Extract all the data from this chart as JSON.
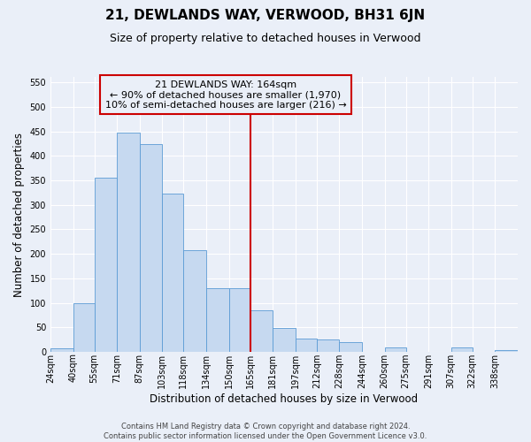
{
  "title": "21, DEWLANDS WAY, VERWOOD, BH31 6JN",
  "subtitle": "Size of property relative to detached houses in Verwood",
  "xlabel": "Distribution of detached houses by size in Verwood",
  "ylabel": "Number of detached properties",
  "bin_labels": [
    "24sqm",
    "40sqm",
    "55sqm",
    "71sqm",
    "87sqm",
    "103sqm",
    "118sqm",
    "134sqm",
    "150sqm",
    "165sqm",
    "181sqm",
    "197sqm",
    "212sqm",
    "228sqm",
    "244sqm",
    "260sqm",
    "275sqm",
    "291sqm",
    "307sqm",
    "322sqm",
    "338sqm"
  ],
  "bin_edges": [
    24,
    40,
    55,
    71,
    87,
    103,
    118,
    134,
    150,
    165,
    181,
    197,
    212,
    228,
    244,
    260,
    275,
    291,
    307,
    322,
    338,
    354
  ],
  "bar_heights": [
    8,
    100,
    355,
    447,
    423,
    323,
    208,
    130,
    130,
    85,
    48,
    28,
    25,
    20,
    0,
    10,
    0,
    0,
    10,
    0,
    3
  ],
  "bar_color": "#c6d9f0",
  "bar_edge_color": "#5b9bd5",
  "vline_x": 165,
  "vline_color": "#cc0000",
  "ylim": [
    0,
    560
  ],
  "yticks": [
    0,
    50,
    100,
    150,
    200,
    250,
    300,
    350,
    400,
    450,
    500,
    550
  ],
  "annotation_title": "21 DEWLANDS WAY: 164sqm",
  "annotation_line1": "← 90% of detached houses are smaller (1,970)",
  "annotation_line2": "10% of semi-detached houses are larger (216) →",
  "annotation_box_edgecolor": "#cc0000",
  "footer_line1": "Contains HM Land Registry data © Crown copyright and database right 2024.",
  "footer_line2": "Contains public sector information licensed under the Open Government Licence v3.0.",
  "background_color": "#eaeff8",
  "grid_color": "#ffffff",
  "title_fontsize": 11,
  "subtitle_fontsize": 9,
  "axis_label_fontsize": 8.5,
  "tick_fontsize": 7,
  "ann_fontsize": 8,
  "footer_fontsize": 6
}
